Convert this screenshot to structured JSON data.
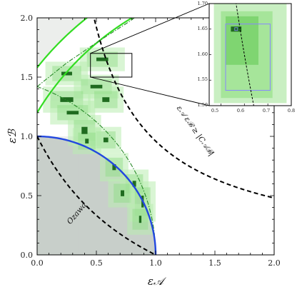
{
  "chart_data": [
    {
      "type": "scatter",
      "subtype": "region-plot",
      "title": "",
      "xlabel": "ε𝒜",
      "ylabel": "εℬ",
      "xlim": [
        0,
        2
      ],
      "ylim": [
        0,
        2
      ],
      "x_ticks": [
        "0.0",
        "0.5",
        "1.0",
        "1.5",
        "2.0"
      ],
      "y_ticks": [
        "0.0",
        "0.5",
        "1.0",
        "1.5",
        "2.0"
      ],
      "grid": false,
      "legend": "none",
      "annotations": [
        {
          "text": "Ozawa",
          "x": 0.5,
          "y": 0.26,
          "angle": -50
        },
        {
          "text": "ε𝒜 εℬ ≥ |C𝒜ℬ|",
          "x": 1.38,
          "y": 1.05,
          "angle": -55
        }
      ],
      "curves": [
        {
          "name": "Ozawa",
          "kind": "dashed",
          "color": "#000000",
          "formula": "eA*eB + eA + eB = 1"
        },
        {
          "name": "product bound",
          "kind": "dashed",
          "color": "#000000",
          "formula": "eA*eB = 0.96"
        },
        {
          "name": "tight bound",
          "kind": "solid",
          "color": "#2244dd",
          "formula": "eA^2 + eB^2 = 1, eA,eB <= 1"
        },
        {
          "name": "green lower",
          "kind": "solid",
          "color": "#22dd22",
          "formula": "circle centred (2,0) through (0,1.2)"
        },
        {
          "name": "green upper",
          "kind": "solid",
          "color": "#22dd22",
          "formula": "circle centred (2,0) through (0,1.58)"
        },
        {
          "name": "dash-dot",
          "kind": "dashdot",
          "color": "#2a8a2a",
          "formula": "lens from (0,1.42) through (1,0)"
        }
      ],
      "shaded_regions": [
        {
          "name": "excluded region",
          "color": "#c5ccc5",
          "bounds": "below tight bound"
        },
        {
          "name": "upper excluded",
          "color": "#e8ebe8",
          "bounds": "above green upper"
        }
      ],
      "data_points": [
        {
          "x": 0.55,
          "y": 1.65,
          "dx": 0.1,
          "dy": 0.03
        },
        {
          "x": 0.25,
          "y": 1.53,
          "dx": 0.09,
          "dy": 0.03
        },
        {
          "x": 0.5,
          "y": 1.42,
          "dx": 0.1,
          "dy": 0.03
        },
        {
          "x": 0.25,
          "y": 1.31,
          "dx": 0.11,
          "dy": 0.04
        },
        {
          "x": 0.58,
          "y": 1.31,
          "dx": 0.06,
          "dy": 0.04
        },
        {
          "x": 0.3,
          "y": 1.2,
          "dx": 0.1,
          "dy": 0.03
        },
        {
          "x": 0.4,
          "y": 1.05,
          "dx": 0.05,
          "dy": 0.06
        },
        {
          "x": 0.58,
          "y": 0.97,
          "dx": 0.04,
          "dy": 0.04
        },
        {
          "x": 0.42,
          "y": 0.96,
          "dx": 0.03,
          "dy": 0.04
        },
        {
          "x": 0.65,
          "y": 0.74,
          "dx": 0.03,
          "dy": 0.05
        },
        {
          "x": 0.82,
          "y": 0.6,
          "dx": 0.03,
          "dy": 0.05
        },
        {
          "x": 0.72,
          "y": 0.52,
          "dx": 0.03,
          "dy": 0.05
        },
        {
          "x": 0.89,
          "y": 0.45,
          "dx": 0.02,
          "dy": 0.1
        },
        {
          "x": 0.87,
          "y": 0.3,
          "dx": 0.02,
          "dy": 0.06
        }
      ]
    },
    {
      "type": "scatter",
      "subtype": "inset-zoom",
      "title": "",
      "xlim": [
        0.45,
        0.8
      ],
      "ylim": [
        1.5,
        1.7
      ],
      "x_ticks": [
        "0.5",
        "0.6",
        "0.7",
        "0.8"
      ],
      "y_ticks": [
        "1.50",
        "1.55",
        "1.60",
        "1.65",
        "1.70"
      ],
      "data_points": [
        {
          "x": 0.565,
          "y": 1.65,
          "dx": 0.045,
          "dy": 0.01
        }
      ],
      "inner_box": {
        "x": [
          0.52,
          0.71
        ],
        "y": [
          1.53,
          1.66
        ],
        "color": "#8888ff"
      }
    }
  ]
}
